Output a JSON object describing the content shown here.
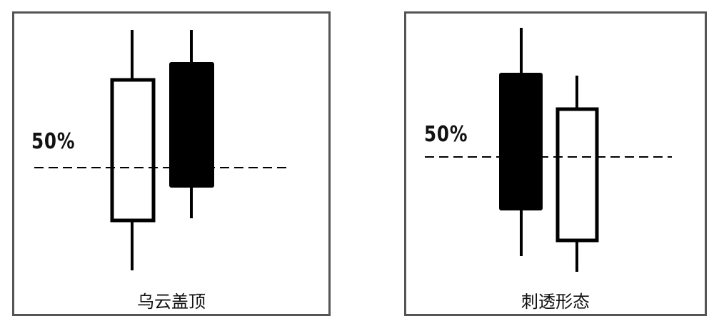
{
  "colors": {
    "stroke": "#000000",
    "border": "#555555",
    "background": "#ffffff"
  },
  "panels": [
    {
      "caption": "乌云盖顶",
      "level_label": "50%",
      "candles": [
        {
          "color": "white",
          "role": "first"
        },
        {
          "color": "black",
          "role": "second"
        }
      ]
    },
    {
      "caption": "刺透形态",
      "level_label": "50%",
      "candles": [
        {
          "color": "black",
          "role": "first"
        },
        {
          "color": "white",
          "role": "second"
        }
      ]
    }
  ]
}
